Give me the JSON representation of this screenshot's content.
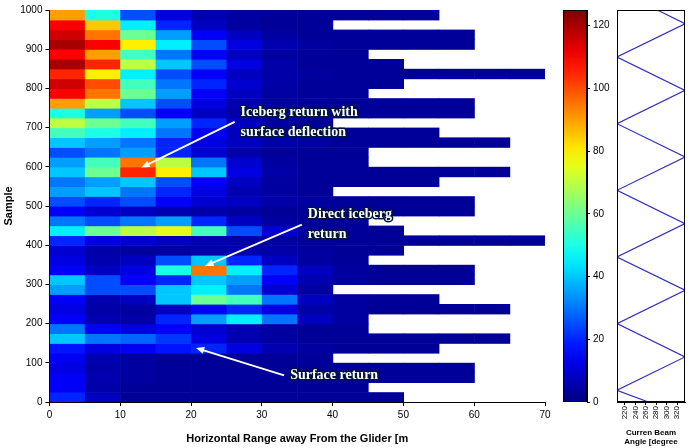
{
  "chart_data": [
    {
      "type": "heatmap",
      "xlabel": "Horizontal Range away From the Glider [m",
      "ylabel": "Sample",
      "xlim": [
        0,
        70
      ],
      "xticks": [
        0,
        10,
        20,
        30,
        40,
        50,
        60,
        70
      ],
      "ylim": [
        0,
        1000
      ],
      "yticks": [
        0,
        100,
        200,
        300,
        400,
        500,
        600,
        700,
        800,
        900,
        1000
      ],
      "grid": false,
      "x_edges": [
        0,
        5,
        10,
        15,
        20,
        25,
        30,
        35,
        40,
        45,
        50,
        55,
        60,
        65,
        70
      ],
      "y_edges": [
        0,
        25,
        50,
        75,
        100,
        125,
        150,
        175,
        200,
        225,
        250,
        275,
        300,
        325,
        350,
        375,
        400,
        425,
        450,
        475,
        500,
        525,
        550,
        575,
        600,
        625,
        650,
        675,
        700,
        725,
        750,
        775,
        800,
        825,
        850,
        875,
        900,
        925,
        950,
        975,
        1000
      ],
      "cells": [
        [
          20,
          8,
          3,
          3,
          3,
          3,
          3,
          3,
          3,
          3,
          null,
          null,
          null,
          null
        ],
        [
          15,
          5,
          3,
          3,
          3,
          3,
          3,
          3,
          3,
          null,
          null,
          null,
          null,
          null
        ],
        [
          15,
          6,
          4,
          3,
          3,
          3,
          3,
          3,
          3,
          3,
          3,
          3,
          null,
          null
        ],
        [
          12,
          5,
          4,
          3,
          3,
          3,
          3,
          3,
          3,
          3,
          3,
          3,
          null,
          null
        ],
        [
          14,
          6,
          4,
          3,
          3,
          3,
          3,
          3,
          null,
          null,
          null,
          null,
          null,
          null
        ],
        [
          18,
          12,
          14,
          18,
          20,
          12,
          6,
          4,
          3,
          3,
          3,
          null,
          null,
          null
        ],
        [
          40,
          30,
          28,
          22,
          12,
          6,
          4,
          3,
          3,
          3,
          3,
          3,
          3,
          null
        ],
        [
          30,
          15,
          12,
          15,
          10,
          6,
          4,
          3,
          3,
          null,
          null,
          null,
          null,
          null
        ],
        [
          15,
          6,
          5,
          20,
          35,
          45,
          30,
          8,
          4,
          null,
          null,
          null,
          null,
          null
        ],
        [
          12,
          5,
          4,
          8,
          15,
          20,
          12,
          5,
          4,
          3,
          3,
          3,
          3,
          null
        ],
        [
          15,
          6,
          8,
          40,
          60,
          55,
          30,
          8,
          4,
          3,
          3,
          null,
          null,
          null
        ],
        [
          35,
          25,
          25,
          40,
          45,
          30,
          10,
          4,
          null,
          null,
          null,
          null,
          null,
          null
        ],
        [
          40,
          25,
          15,
          20,
          40,
          35,
          15,
          6,
          4,
          3,
          3,
          3,
          null,
          null
        ],
        [
          15,
          8,
          12,
          50,
          95,
          45,
          20,
          8,
          4,
          3,
          3,
          3,
          null,
          null
        ],
        [
          12,
          6,
          8,
          25,
          40,
          20,
          8,
          4,
          3,
          null,
          null,
          null,
          null,
          null
        ],
        [
          10,
          5,
          4,
          4,
          5,
          6,
          5,
          4,
          3,
          3,
          null,
          null,
          null,
          null
        ],
        [
          20,
          12,
          10,
          8,
          6,
          5,
          4,
          3,
          3,
          3,
          3,
          3,
          3,
          3
        ],
        [
          45,
          60,
          70,
          75,
          55,
          25,
          10,
          4,
          3,
          3,
          null,
          null,
          null,
          null
        ],
        [
          30,
          25,
          30,
          35,
          20,
          8,
          4,
          3,
          3,
          null,
          null,
          null,
          null,
          null
        ],
        [
          15,
          10,
          8,
          6,
          5,
          4,
          3,
          3,
          3,
          3,
          3,
          3,
          null,
          null
        ],
        [
          25,
          20,
          25,
          15,
          10,
          8,
          5,
          4,
          3,
          3,
          3,
          3,
          null,
          null
        ],
        [
          35,
          40,
          30,
          20,
          12,
          6,
          4,
          3,
          null,
          null,
          null,
          null,
          null,
          null
        ],
        [
          30,
          35,
          40,
          25,
          15,
          8,
          4,
          3,
          3,
          3,
          3,
          null,
          null,
          null
        ],
        [
          40,
          60,
          105,
          80,
          40,
          12,
          5,
          3,
          3,
          3,
          3,
          3,
          3,
          null
        ],
        [
          35,
          55,
          95,
          70,
          30,
          10,
          4,
          3,
          3,
          null,
          null,
          null,
          null,
          null
        ],
        [
          25,
          30,
          35,
          20,
          10,
          5,
          3,
          3,
          3,
          null,
          null,
          null,
          null,
          null
        ],
        [
          40,
          35,
          30,
          20,
          12,
          8,
          5,
          4,
          3,
          3,
          3,
          3,
          3,
          null
        ],
        [
          55,
          50,
          45,
          30,
          15,
          8,
          4,
          3,
          3,
          3,
          3,
          null,
          null,
          null
        ],
        [
          70,
          60,
          55,
          35,
          20,
          8,
          4,
          3,
          null,
          null,
          null,
          null,
          null,
          null
        ],
        [
          50,
          35,
          25,
          15,
          8,
          5,
          4,
          3,
          3,
          3,
          3,
          3,
          null,
          null
        ],
        [
          90,
          70,
          40,
          25,
          12,
          6,
          4,
          3,
          3,
          3,
          3,
          3,
          null,
          null
        ],
        [
          110,
          95,
          60,
          35,
          15,
          8,
          4,
          3,
          3,
          null,
          null,
          null,
          null,
          null
        ],
        [
          115,
          100,
          55,
          30,
          20,
          10,
          5,
          3,
          3,
          3,
          null,
          null,
          null,
          null
        ],
        [
          105,
          80,
          45,
          25,
          15,
          8,
          5,
          4,
          3,
          3,
          3,
          3,
          3,
          3
        ],
        [
          120,
          105,
          70,
          40,
          25,
          12,
          5,
          3,
          3,
          3,
          null,
          null,
          null,
          null
        ],
        [
          110,
          90,
          55,
          30,
          15,
          8,
          4,
          3,
          3,
          null,
          null,
          null,
          null,
          null
        ],
        [
          120,
          110,
          80,
          45,
          25,
          12,
          6,
          4,
          3,
          3,
          3,
          3,
          null,
          null
        ],
        [
          115,
          95,
          60,
          35,
          15,
          8,
          4,
          3,
          3,
          3,
          3,
          3,
          null,
          null
        ],
        [
          110,
          85,
          45,
          20,
          8,
          4,
          3,
          3,
          null,
          null,
          null,
          null,
          null,
          null
        ],
        [
          90,
          50,
          25,
          12,
          6,
          4,
          3,
          3,
          3,
          3,
          3,
          null,
          null,
          null
        ]
      ],
      "colorbar": {
        "range": [
          0,
          125
        ],
        "ticks": [
          0,
          20,
          40,
          60,
          80,
          100,
          120
        ]
      },
      "annotations": [
        {
          "text": "Iceberg return with surface deflection",
          "x": 13,
          "y": 598,
          "text_x": 27,
          "text_y": 740
        },
        {
          "text": "Direct iceberg return",
          "x": 22,
          "y": 347,
          "text_x": 36.5,
          "text_y": 478
        },
        {
          "text": "Surface return",
          "x": 20.7,
          "y": 138,
          "text_x": 34,
          "text_y": 68
        }
      ]
    },
    {
      "type": "line",
      "xlabel": "Curren Beam Angle [degree",
      "x": [
        265,
        205,
        335,
        205,
        335,
        205,
        335,
        205,
        335,
        205,
        335,
        205,
        335,
        282
      ],
      "values": [
        0,
        30,
        115,
        200,
        285,
        370,
        455,
        540,
        625,
        710,
        795,
        880,
        965,
        1000
      ],
      "color": "#2f2fc8",
      "xlim": [
        205,
        335
      ],
      "xticks": [
        220,
        240,
        260,
        280,
        300,
        320
      ],
      "ylim": [
        0,
        1000
      ],
      "tick_labels": "x",
      "grid": false
    }
  ]
}
